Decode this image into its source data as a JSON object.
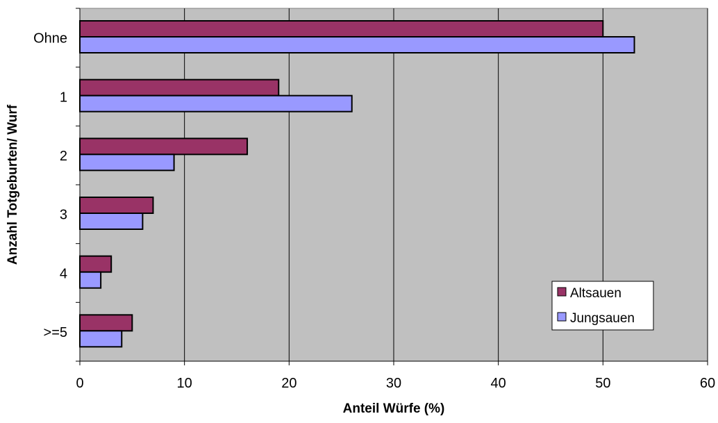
{
  "chart_data": {
    "type": "bar",
    "orientation": "horizontal",
    "categories": [
      "Ohne",
      "1",
      "2",
      "3",
      "4",
      ">=5"
    ],
    "series": [
      {
        "name": "Altsauen",
        "values": [
          50,
          19,
          16,
          7,
          3,
          5
        ],
        "color": "#993366"
      },
      {
        "name": "Jungsauen",
        "values": [
          53,
          26,
          9,
          6,
          2,
          4
        ],
        "color": "#9999ff"
      }
    ],
    "xlabel": "Anteil Würfe (%)",
    "ylabel": "Anzahl Totgeburten/ Wurf",
    "xlim": [
      0,
      60
    ],
    "xticks": [
      0,
      10,
      20,
      30,
      40,
      50,
      60
    ],
    "grid": "vertical",
    "legend_position": "bottom-right",
    "plot_background": "#c0c0c0"
  }
}
